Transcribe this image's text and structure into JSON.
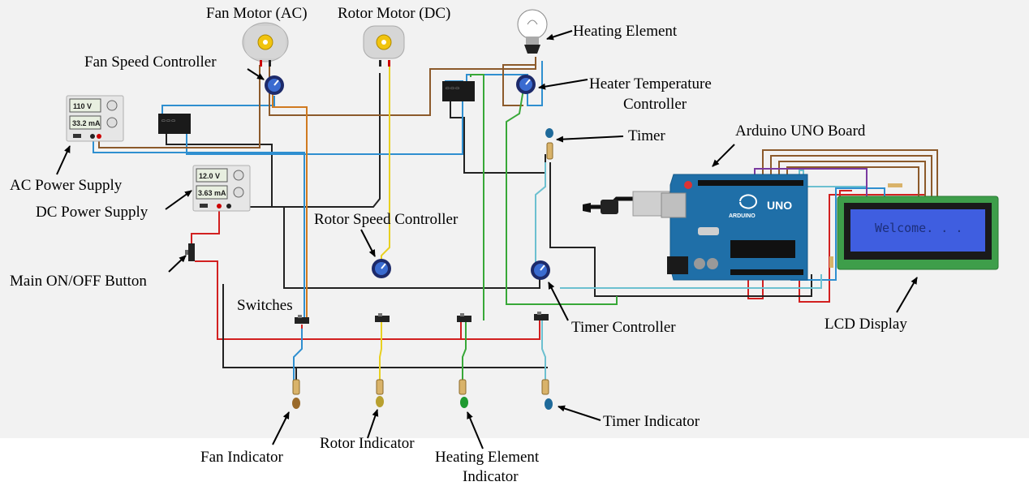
{
  "labels": {
    "fan_motor": "Fan Motor (AC)",
    "rotor_motor": "Rotor Motor (DC)",
    "heating_element": "Heating Element",
    "fan_speed_controller": "Fan Speed Controller",
    "heater_temp_controller_1": "Heater Temperature",
    "heater_temp_controller_2": "Controller",
    "timer": "Timer",
    "arduino_board": "Arduino UNO Board",
    "ac_power_supply": "AC Power Supply",
    "dc_power_supply": "DC Power Supply",
    "rotor_speed_controller": "Rotor Speed Controller",
    "main_button": "Main ON/OFF Button",
    "switches": "Switches",
    "timer_controller": "Timer Controller",
    "lcd_display": "LCD Display",
    "timer_indicator": "Timer Indicator",
    "fan_indicator": "Fan Indicator",
    "rotor_indicator": "Rotor Indicator",
    "heating_indicator_1": "Heating Element",
    "heating_indicator_2": "Indicator"
  },
  "devices": {
    "ac_supply": {
      "voltage": "110 V",
      "current": "33.2 mA"
    },
    "dc_supply": {
      "voltage": "12.0 V",
      "current": "3.63 mA"
    },
    "lcd": {
      "text": "Welcome. . ."
    },
    "arduino": {
      "model": "UNO",
      "brand": "ARDUINO"
    }
  },
  "colors": {
    "canvas_bg": "#f2f2f2",
    "arduino_board": "#1f6fa8",
    "lcd_frame": "#3e9e4a",
    "lcd_screen": "#3f5ee0",
    "wire_red": "#d22020",
    "wire_black": "#222222",
    "wire_blue": "#2f8fd0",
    "wire_brown": "#8c5a2b",
    "wire_orange": "#d07a20",
    "wire_yellow": "#e8d020",
    "wire_green": "#38a838",
    "wire_teal": "#6cc0d0",
    "led_fan": "#9a6a2a",
    "led_rotor": "#b8a030",
    "led_heating": "#1f9a30",
    "led_timer": "#1f6a9a"
  }
}
